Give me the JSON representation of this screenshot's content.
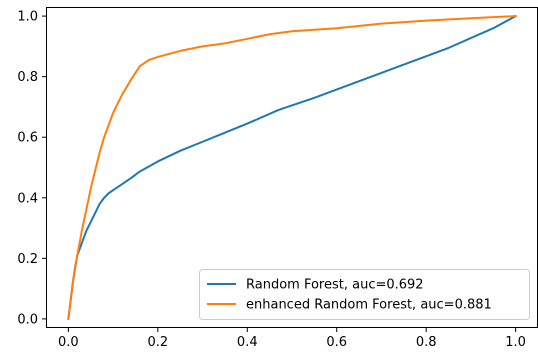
{
  "chart_data": {
    "type": "line",
    "title": "",
    "xlabel": "",
    "ylabel": "",
    "xlim": [
      -0.05,
      1.05
    ],
    "ylim": [
      -0.03,
      1.03
    ],
    "grid": false,
    "legend_position": "lower-right",
    "x_ticks": [
      0.0,
      0.2,
      0.4,
      0.6,
      0.8,
      1.0
    ],
    "y_ticks": [
      0.0,
      0.2,
      0.4,
      0.6,
      0.8,
      1.0
    ],
    "x_tick_labels": [
      "0.0",
      "0.2",
      "0.4",
      "0.6",
      "0.8",
      "1.0"
    ],
    "y_tick_labels": [
      "0.0",
      "0.2",
      "0.4",
      "0.6",
      "0.8",
      "1.0"
    ],
    "series": [
      {
        "name": "Random Forest, auc=0.692",
        "color": "#1f77b4",
        "x": [
          0.0,
          0.005,
          0.01,
          0.015,
          0.02,
          0.03,
          0.04,
          0.05,
          0.06,
          0.07,
          0.08,
          0.09,
          0.1,
          0.12,
          0.14,
          0.16,
          0.2,
          0.25,
          0.3,
          0.35,
          0.4,
          0.47,
          0.55,
          0.65,
          0.75,
          0.85,
          0.95,
          1.0
        ],
        "y": [
          0.0,
          0.06,
          0.12,
          0.17,
          0.21,
          0.25,
          0.29,
          0.32,
          0.35,
          0.38,
          0.4,
          0.415,
          0.425,
          0.445,
          0.465,
          0.487,
          0.52,
          0.555,
          0.585,
          0.615,
          0.645,
          0.69,
          0.73,
          0.785,
          0.84,
          0.895,
          0.96,
          1.0
        ]
      },
      {
        "name": "enhanced Random Forest, auc=0.881",
        "color": "#ff7f0e",
        "x": [
          0.0,
          0.005,
          0.01,
          0.02,
          0.03,
          0.04,
          0.05,
          0.06,
          0.07,
          0.08,
          0.09,
          0.1,
          0.12,
          0.14,
          0.16,
          0.18,
          0.2,
          0.25,
          0.3,
          0.35,
          0.4,
          0.45,
          0.5,
          0.6,
          0.7,
          0.8,
          0.9,
          1.0
        ],
        "y": [
          0.0,
          0.06,
          0.12,
          0.21,
          0.29,
          0.36,
          0.43,
          0.49,
          0.55,
          0.6,
          0.64,
          0.68,
          0.74,
          0.79,
          0.835,
          0.855,
          0.865,
          0.885,
          0.9,
          0.91,
          0.925,
          0.94,
          0.95,
          0.96,
          0.975,
          0.985,
          0.993,
          1.0
        ]
      }
    ]
  }
}
